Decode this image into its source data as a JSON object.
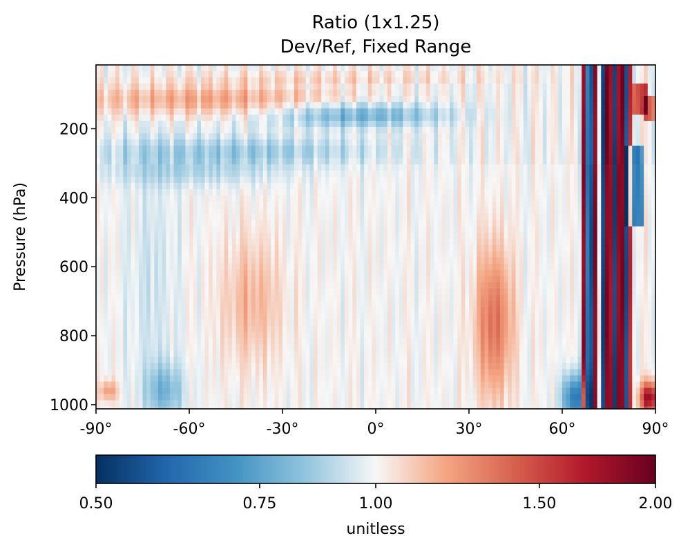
{
  "chart_data": {
    "type": "heatmap",
    "title": "Ratio (1x1.25)",
    "subtitle": "Dev/Ref, Fixed Range",
    "xlabel": "",
    "ylabel": "Pressure (hPa)",
    "xlim": [
      -90,
      90
    ],
    "ylim": [
      1012,
      15
    ],
    "x_ticks": [
      -90,
      -60,
      -30,
      0,
      30,
      60,
      90
    ],
    "x_tick_labels": [
      "-90°",
      "-60°",
      "-30°",
      "0°",
      "30°",
      "60°",
      "90°"
    ],
    "y_ticks": [
      200,
      400,
      600,
      800,
      1000
    ],
    "y_tick_labels": [
      "200",
      "400",
      "600",
      "800",
      "1000"
    ],
    "colorbar": {
      "colormap": "RdBu_r",
      "scale": "log",
      "range": [
        0.5,
        2.0
      ],
      "ticks": [
        0.5,
        0.75,
        1.0,
        1.5,
        2.0
      ],
      "tick_labels": [
        "0.50",
        "0.75",
        "1.00",
        "1.50",
        "2.00"
      ],
      "label": "unitless"
    },
    "field_features": [
      {
        "region": "upper levels 70-170 hPa, 90S-30S",
        "ratio": 1.2
      },
      {
        "region": "upper levels 200-320 hPa, 90S-10S",
        "ratio": 0.8
      },
      {
        "region": "tropical upper 120-200 hPa near 0",
        "ratio": 0.75
      },
      {
        "region": "mid troposphere 500-900 hPa near 40S",
        "ratio": 1.15
      },
      {
        "region": "mid troposphere 500-900 hPa near 38N",
        "ratio": 1.35
      },
      {
        "region": "lower levels 850-1000 hPa near 70S",
        "ratio": 0.78
      },
      {
        "region": "surface 950-1000 hPa near 85S",
        "ratio": 1.2
      },
      {
        "region": "alternating columns 68N-80N",
        "ratio_range": [
          0.5,
          2.0
        ]
      },
      {
        "region": "near surface 950-1000 hPa north of 85N",
        "ratio": 1.9
      },
      {
        "region": "900-1000 hPa near 62N-68N",
        "ratio": 0.55
      }
    ]
  }
}
